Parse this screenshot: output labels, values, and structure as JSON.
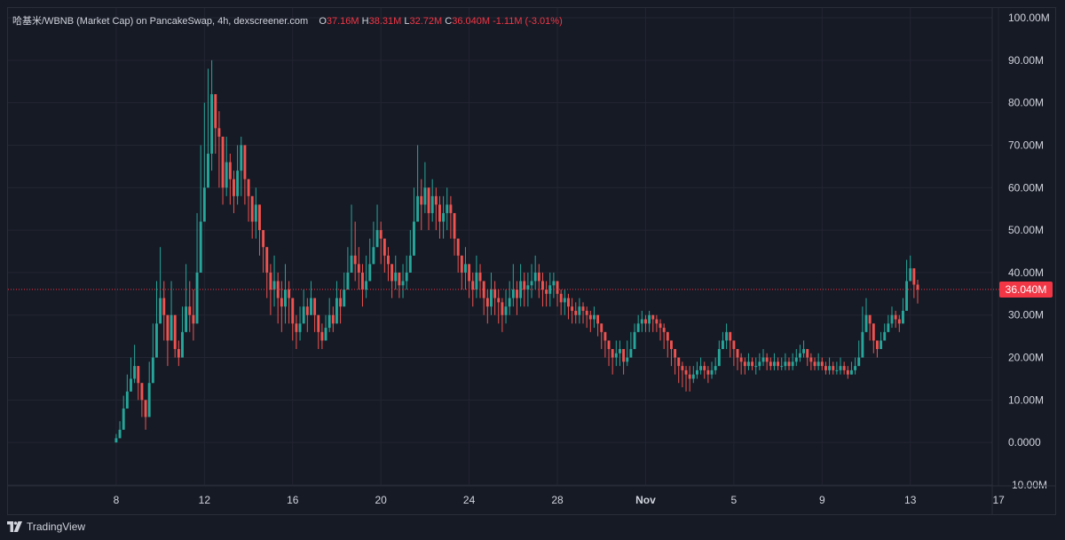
{
  "chart_data": {
    "type": "candlestick",
    "title": "哈基米/WBNB (Market Cap) on PancakeSwap, 4h, dexscreener.com",
    "ohlc_legend": {
      "o_label": "O",
      "o_value": "37.16M",
      "h_label": "H",
      "h_value": "38.31M",
      "l_label": "L",
      "l_value": "32.72M",
      "c_label": "C",
      "c_value": "36.040M",
      "change": "-1.11M (-3.01%)"
    },
    "y_unit": "M",
    "ylim": [
      -10,
      100
    ],
    "y_ticks": [
      "100.00M",
      "90.00M",
      "80.00M",
      "70.00M",
      "60.00M",
      "50.00M",
      "40.00M",
      "30.00M",
      "20.00M",
      "10.00M",
      "0.0000",
      "-10.00M"
    ],
    "y_tick_values": [
      100,
      90,
      80,
      70,
      60,
      50,
      40,
      30,
      20,
      10,
      0,
      -10
    ],
    "x_ticks": [
      "8",
      "12",
      "16",
      "20",
      "24",
      "28",
      "Nov",
      "5",
      "9",
      "13",
      "17"
    ],
    "x_tick_days": [
      8,
      12,
      16,
      20,
      24,
      28,
      32,
      36,
      40,
      44,
      48
    ],
    "x_range_days": [
      3.9,
      49
    ],
    "last_price": 36.04,
    "last_price_label": "36.040M",
    "candle_interval_hours": 4,
    "first_candle_day": 8,
    "closes": [
      1,
      3,
      8,
      12,
      15,
      18,
      14,
      10,
      6,
      14,
      20,
      28,
      34,
      30,
      24,
      30,
      22,
      20,
      26,
      32,
      30,
      28,
      40,
      52,
      60,
      68,
      82,
      74,
      72,
      60,
      66,
      62,
      58,
      64,
      70,
      62,
      58,
      52,
      56,
      50,
      46,
      40,
      36,
      38,
      34,
      32,
      36,
      34,
      28,
      26,
      28,
      32,
      30,
      34,
      30,
      26,
      24,
      27,
      30,
      28,
      34,
      32,
      36,
      40,
      44,
      42,
      40,
      36,
      38,
      42,
      46,
      50,
      48,
      44,
      42,
      38,
      40,
      37,
      38,
      40,
      44,
      52,
      58,
      56,
      60,
      54,
      58,
      56,
      52,
      54,
      56,
      54,
      48,
      44,
      40,
      42,
      38,
      36,
      40,
      38,
      34,
      32,
      36,
      34,
      33,
      30,
      32,
      34,
      36,
      34,
      38,
      36,
      37,
      38,
      40,
      38,
      36,
      35,
      37,
      38,
      35,
      33,
      34,
      32,
      31,
      30,
      32,
      31,
      30,
      29,
      30,
      28,
      26,
      24,
      22,
      20,
      21,
      22,
      19,
      20,
      22,
      26,
      28,
      29,
      28,
      30,
      29,
      28,
      27,
      26,
      24,
      22,
      20,
      18,
      17,
      16,
      15,
      16,
      17,
      18,
      17,
      16,
      17,
      18,
      22,
      24,
      26,
      24,
      22,
      20,
      19,
      18,
      19,
      18,
      18,
      19,
      20,
      19,
      18,
      19,
      18,
      18,
      19,
      18,
      19,
      20,
      21,
      22,
      20,
      19,
      18,
      19,
      18,
      17,
      18,
      17,
      17,
      18,
      17,
      16,
      17,
      18,
      20,
      26,
      30,
      28,
      24,
      22,
      24,
      26,
      28,
      30,
      29,
      28,
      31,
      38,
      41,
      37.16,
      36.04
    ],
    "highs": [
      2,
      5,
      11,
      16,
      20,
      23,
      18,
      14,
      10,
      19,
      28,
      38,
      46,
      38,
      30,
      38,
      30,
      24,
      32,
      42,
      38,
      36,
      54,
      70,
      80,
      88,
      90,
      80,
      78,
      68,
      72,
      68,
      64,
      70,
      72,
      68,
      62,
      58,
      60,
      56,
      50,
      46,
      42,
      44,
      40,
      38,
      42,
      38,
      34,
      30,
      32,
      36,
      34,
      38,
      34,
      30,
      28,
      30,
      34,
      32,
      38,
      36,
      40,
      46,
      56,
      52,
      46,
      42,
      44,
      48,
      52,
      56,
      52,
      48,
      46,
      42,
      44,
      40,
      42,
      44,
      50,
      60,
      70,
      62,
      66,
      60,
      62,
      60,
      58,
      58,
      60,
      58,
      54,
      48,
      44,
      46,
      42,
      40,
      44,
      42,
      38,
      36,
      40,
      38,
      36,
      34,
      36,
      38,
      42,
      38,
      42,
      40,
      40,
      42,
      44,
      42,
      40,
      38,
      40,
      40,
      38,
      36,
      36,
      35,
      34,
      33,
      34,
      33,
      32,
      31,
      32,
      30,
      28,
      26,
      24,
      22,
      24,
      24,
      22,
      24,
      26,
      28,
      30,
      31,
      30,
      31,
      30,
      30,
      29,
      28,
      26,
      24,
      22,
      20,
      19,
      18,
      18,
      18,
      19,
      20,
      19,
      18,
      19,
      20,
      24,
      26,
      28,
      26,
      24,
      22,
      21,
      20,
      21,
      20,
      20,
      21,
      22,
      21,
      20,
      21,
      20,
      20,
      21,
      20,
      21,
      22,
      23,
      24,
      22,
      21,
      20,
      21,
      20,
      19,
      20,
      19,
      19,
      20,
      19,
      18,
      19,
      20,
      24,
      32,
      34,
      30,
      26,
      24,
      26,
      28,
      30,
      32,
      31,
      30,
      34,
      43,
      44,
      41,
      38.31
    ],
    "lows": [
      0,
      1,
      4,
      8,
      12,
      14,
      10,
      6,
      3,
      10,
      16,
      24,
      30,
      24,
      18,
      24,
      20,
      18,
      22,
      28,
      26,
      24,
      36,
      48,
      56,
      60,
      64,
      68,
      60,
      56,
      58,
      56,
      54,
      56,
      58,
      56,
      52,
      48,
      48,
      44,
      40,
      34,
      30,
      32,
      28,
      26,
      28,
      28,
      24,
      22,
      24,
      28,
      26,
      30,
      26,
      22,
      22,
      24,
      26,
      26,
      30,
      28,
      32,
      36,
      40,
      38,
      36,
      32,
      34,
      38,
      42,
      46,
      42,
      40,
      38,
      34,
      36,
      34,
      34,
      36,
      40,
      48,
      52,
      50,
      54,
      50,
      52,
      50,
      48,
      48,
      50,
      48,
      44,
      40,
      36,
      36,
      34,
      32,
      34,
      34,
      30,
      28,
      30,
      30,
      28,
      26,
      28,
      30,
      32,
      30,
      32,
      32,
      32,
      34,
      36,
      34,
      32,
      32,
      32,
      34,
      32,
      30,
      30,
      29,
      28,
      28,
      28,
      28,
      27,
      26,
      27,
      25,
      22,
      20,
      18,
      16,
      18,
      18,
      16,
      18,
      20,
      22,
      26,
      26,
      26,
      26,
      26,
      26,
      24,
      22,
      20,
      18,
      16,
      14,
      13,
      12,
      12,
      14,
      15,
      16,
      15,
      14,
      15,
      16,
      18,
      22,
      22,
      20,
      18,
      17,
      16,
      16,
      17,
      17,
      16,
      17,
      18,
      17,
      17,
      17,
      17,
      17,
      17,
      17,
      17,
      18,
      19,
      20,
      18,
      17,
      17,
      17,
      17,
      16,
      16,
      16,
      16,
      16,
      16,
      15,
      16,
      16,
      18,
      22,
      26,
      24,
      21,
      20,
      22,
      24,
      26,
      27,
      27,
      26,
      28,
      34,
      38,
      34,
      32.72
    ]
  },
  "footer": {
    "brand": "TradingView"
  },
  "colors": {
    "up": "#26a69a",
    "down": "#ef5350",
    "background": "#161a25",
    "grid": "#232632",
    "price_line": "#f23645"
  }
}
